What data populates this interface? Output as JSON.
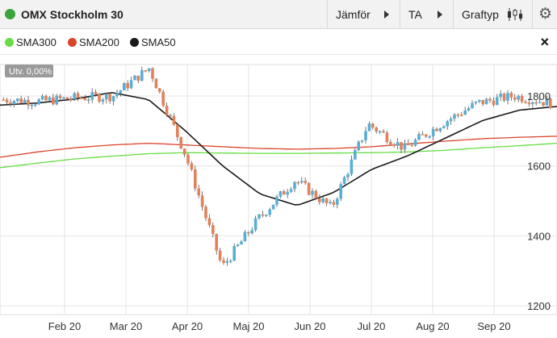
{
  "toolbar": {
    "instrument": "OMX Stockholm 30",
    "compare_label": "Jämför",
    "ta_label": "TA",
    "graph_type_label": "Graftyp"
  },
  "legend": {
    "items": [
      {
        "label": "SMA300",
        "color": "#66dd44"
      },
      {
        "label": "SMA200",
        "color": "#d9452b"
      },
      {
        "label": "SMA50",
        "color": "#1a1a1a"
      }
    ],
    "close_label": "×"
  },
  "chart_data": {
    "type": "candlestick",
    "badge": "Utv. 0,00%",
    "x_ticks": [
      "Feb 20",
      "Mar 20",
      "Apr 20",
      "Maj 20",
      "Jun 20",
      "Jul 20",
      "Aug 20",
      "Sep 20"
    ],
    "y_ticks": [
      1200,
      1400,
      1600,
      1800
    ],
    "ylim": [
      1175,
      1890
    ],
    "grid": true,
    "colors": {
      "up": "#5aaed6",
      "down": "#e0825a"
    },
    "series": [
      {
        "name": "SMA300",
        "color": "#66dd44",
        "values": [
          1595,
          1608,
          1620,
          1628,
          1635,
          1638,
          1637,
          1636,
          1636,
          1637,
          1638,
          1640,
          1645,
          1652,
          1658,
          1665
        ]
      },
      {
        "name": "SMA200",
        "color": "#d9452b",
        "values": [
          1625,
          1640,
          1652,
          1660,
          1665,
          1660,
          1655,
          1650,
          1648,
          1650,
          1655,
          1663,
          1671,
          1678,
          1682,
          1685
        ]
      },
      {
        "name": "SMA50",
        "color": "#1a1a1a",
        "values": [
          1774,
          1780,
          1791,
          1810,
          1790,
          1700,
          1600,
          1520,
          1487,
          1525,
          1590,
          1630,
          1680,
          1730,
          1760,
          1770
        ]
      },
      {
        "name": "Kurs",
        "values": [
          1790,
          1785,
          1795,
          1800,
          1880,
          1630,
          1310,
          1450,
          1560,
          1480,
          1720,
          1650,
          1720,
          1780,
          1800,
          1780
        ]
      }
    ]
  }
}
